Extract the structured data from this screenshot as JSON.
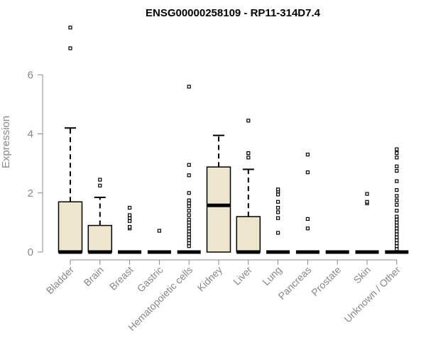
{
  "chart_data": {
    "type": "box",
    "title": "ENSG00000258109 - RP11-314D7.4",
    "ylabel": "Expression",
    "xlabel": "",
    "ylim": [
      0,
      7.6
    ],
    "yticks": [
      0,
      2,
      4,
      6
    ],
    "grid": false,
    "box_fill": "#ede6cc",
    "box_stroke": "#000000",
    "axis_color": "#888888",
    "categories": [
      "Bladder",
      "Brain",
      "Breast",
      "Gastric",
      "Hematopoietic cells",
      "Kidney",
      "Liver",
      "Lung",
      "Pancreas",
      "Prostate",
      "Skin",
      "Unknown / Other"
    ],
    "boxes": [
      {
        "q1": 0,
        "median": 0,
        "q3": 1.7,
        "whisker_low": 0,
        "whisker_high": 4.2,
        "outliers": [
          6.9,
          7.6
        ]
      },
      {
        "q1": 0,
        "median": 0,
        "q3": 0.9,
        "whisker_low": 0,
        "whisker_high": 1.85,
        "outliers": [
          2.25,
          2.45
        ]
      },
      {
        "q1": 0,
        "median": 0,
        "q3": 0,
        "whisker_low": 0,
        "whisker_high": 0,
        "outliers": [
          0.8,
          0.85,
          1.05,
          1.15,
          1.25,
          1.5
        ]
      },
      {
        "q1": 0,
        "median": 0,
        "q3": 0,
        "whisker_low": 0,
        "whisker_high": 0,
        "outliers": [
          0.72
        ]
      },
      {
        "q1": 0,
        "median": 0,
        "q3": 0,
        "whisker_low": 0,
        "whisker_high": 0,
        "outliers": [
          0.2,
          0.3,
          0.4,
          0.5,
          0.6,
          0.7,
          0.8,
          0.9,
          1.0,
          1.1,
          1.25,
          1.4,
          1.55,
          1.65,
          1.75,
          2.0,
          2.6,
          2.95,
          5.6
        ]
      },
      {
        "q1": 0,
        "median": 1.58,
        "q3": 2.88,
        "whisker_low": 0,
        "whisker_high": 3.95,
        "outliers": []
      },
      {
        "q1": 0,
        "median": 0,
        "q3": 1.2,
        "whisker_low": 0,
        "whisker_high": 2.8,
        "outliers": [
          3.2,
          3.35,
          4.45
        ]
      },
      {
        "q1": 0,
        "median": 0,
        "q3": 0,
        "whisker_low": 0,
        "whisker_high": 0,
        "outliers": [
          0.65,
          1.15,
          1.35,
          1.5,
          1.7,
          1.95,
          2.05,
          2.12
        ]
      },
      {
        "q1": 0,
        "median": 0,
        "q3": 0,
        "whisker_low": 0,
        "whisker_high": 0,
        "outliers": [
          0.8,
          1.12,
          2.7,
          3.3
        ]
      },
      {
        "q1": 0,
        "median": 0,
        "q3": 0,
        "whisker_low": 0,
        "whisker_high": 0,
        "outliers": []
      },
      {
        "q1": 0,
        "median": 0,
        "q3": 0,
        "whisker_low": 0,
        "whisker_high": 0,
        "outliers": [
          1.65,
          1.7,
          1.97
        ]
      },
      {
        "q1": 0,
        "median": 0,
        "q3": 0,
        "whisker_low": 0,
        "whisker_high": 0,
        "outliers": [
          0.1,
          0.2,
          0.3,
          0.4,
          0.5,
          0.6,
          0.7,
          0.8,
          0.9,
          1.0,
          1.1,
          1.2,
          1.4,
          1.6,
          1.75,
          1.9,
          2.1,
          2.4,
          2.75,
          2.9,
          3.2,
          3.35,
          3.48
        ]
      }
    ]
  }
}
